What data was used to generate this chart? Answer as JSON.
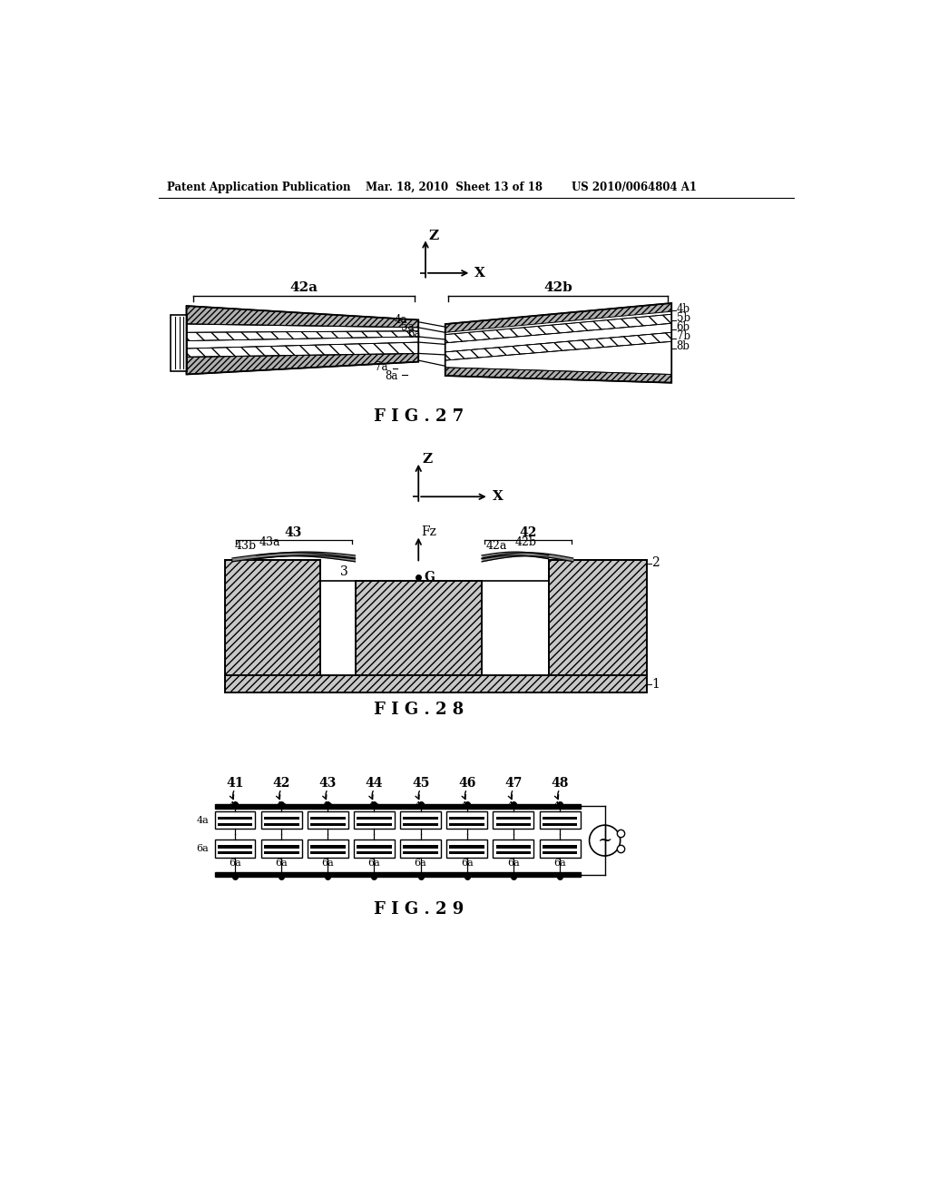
{
  "header_left": "Patent Application Publication",
  "header_mid": "Mar. 18, 2010  Sheet 13 of 18",
  "header_right": "US 2010/0064804 A1",
  "fig27_label": "F I G . 2 7",
  "fig28_label": "F I G . 2 8",
  "fig29_label": "F I G . 2 9",
  "bg_color": "#ffffff",
  "line_color": "#000000"
}
